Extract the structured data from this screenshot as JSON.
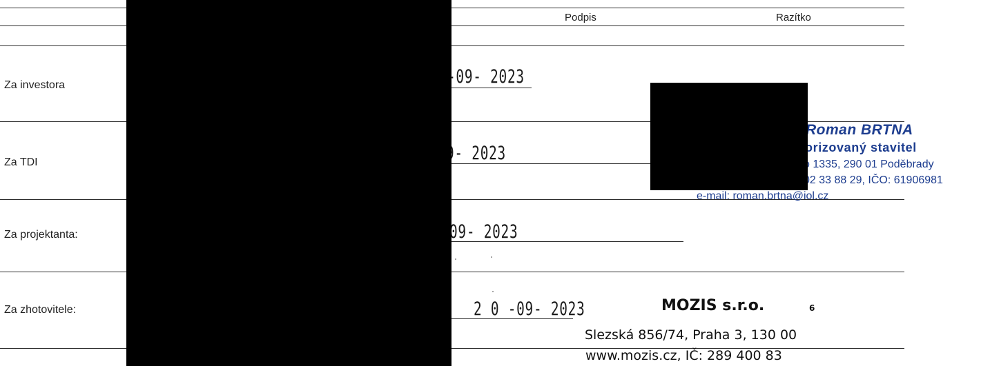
{
  "header": {
    "podpis": "Podpis",
    "razitko": "Razítko"
  },
  "rows": [
    {
      "label": "Za investora"
    },
    {
      "label": "Za TDI"
    },
    {
      "label": "Za projektanta:"
    },
    {
      "label": "Za zhotovitele:"
    }
  ],
  "dates": [
    "-09- 2023",
    "9- 2023",
    "09- 2023",
    "2 0 -09- 2023"
  ],
  "stamp_tdi": {
    "line1": "Roman BRTNA",
    "line2": "orizovaný stavitel",
    "line3": "o 1335, 290 01 Poděbrady",
    "line4": "02 33 88 29, IČO: 61906981",
    "line5": "e-mail: roman.brtna@iol.cz",
    "color": "#1d3d8f"
  },
  "stamp_contractor": {
    "company": "MOZIS s.r.o.",
    "number": "6",
    "address": "Slezská 856/74, Praha 3, 130 00",
    "web": "www.mozis.cz, IČ: 289 400 83"
  }
}
